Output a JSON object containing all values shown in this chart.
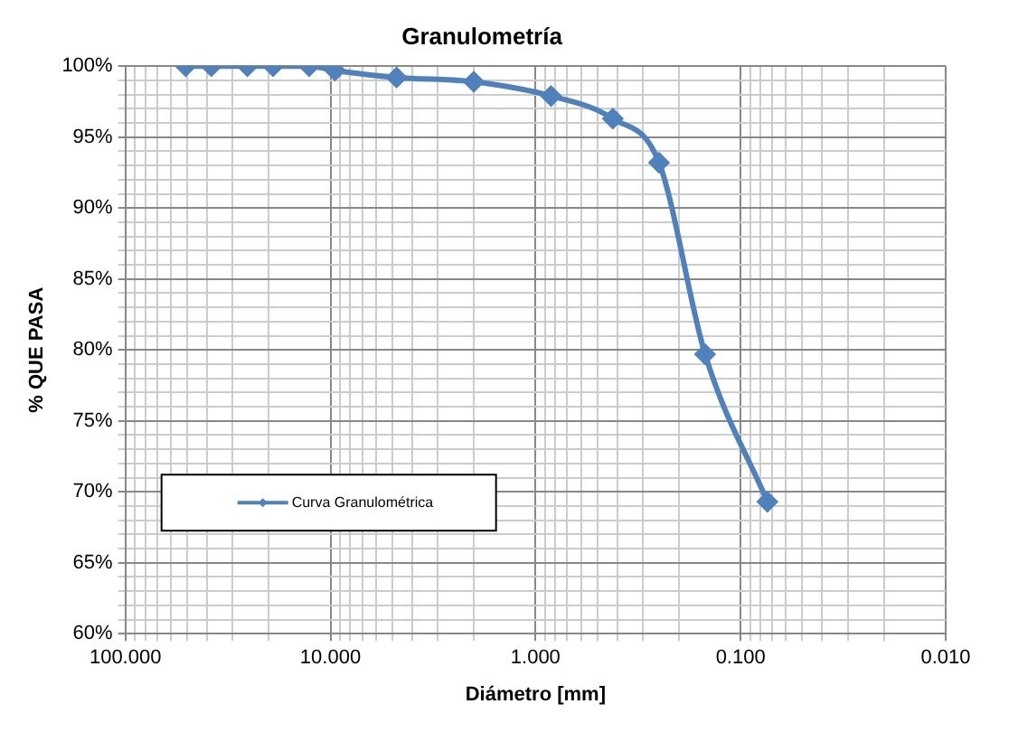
{
  "chart_data": {
    "type": "line",
    "title": "Granulometría",
    "xlabel": "Diámetro [mm]",
    "ylabel": "% QUE PASA",
    "log": "x",
    "xlim": [
      100,
      0.01
    ],
    "xticks": [
      {
        "value": 100,
        "label": "100.000"
      },
      {
        "value": 90,
        "label": null
      },
      {
        "value": 80,
        "label": null
      },
      {
        "value": 70,
        "label": null
      },
      {
        "value": 60,
        "label": null
      },
      {
        "value": 50,
        "label": null
      },
      {
        "value": 40,
        "label": null
      },
      {
        "value": 30,
        "label": null
      },
      {
        "value": 20,
        "label": null
      },
      {
        "value": 10,
        "label": "10.000"
      },
      {
        "value": 9,
        "label": null
      },
      {
        "value": 8,
        "label": null
      },
      {
        "value": 7,
        "label": null
      },
      {
        "value": 6,
        "label": null
      },
      {
        "value": 5,
        "label": null
      },
      {
        "value": 4,
        "label": null
      },
      {
        "value": 3,
        "label": null
      },
      {
        "value": 2,
        "label": null
      },
      {
        "value": 1,
        "label": "1.000"
      },
      {
        "value": 0.9,
        "label": null
      },
      {
        "value": 0.8,
        "label": null
      },
      {
        "value": 0.7,
        "label": null
      },
      {
        "value": 0.6,
        "label": null
      },
      {
        "value": 0.5,
        "label": null
      },
      {
        "value": 0.4,
        "label": null
      },
      {
        "value": 0.3,
        "label": null
      },
      {
        "value": 0.2,
        "label": null
      },
      {
        "value": 0.1,
        "label": "0.100"
      },
      {
        "value": 0.09,
        "label": null
      },
      {
        "value": 0.08,
        "label": null
      },
      {
        "value": 0.07,
        "label": null
      },
      {
        "value": 0.06,
        "label": null
      },
      {
        "value": 0.05,
        "label": null
      },
      {
        "value": 0.04,
        "label": null
      },
      {
        "value": 0.03,
        "label": null
      },
      {
        "value": 0.02,
        "label": null
      },
      {
        "value": 0.01,
        "label": "0.010"
      }
    ],
    "ylim": [
      60,
      100
    ],
    "yticks": [
      {
        "value": 60,
        "label": "60%"
      },
      {
        "value": 61,
        "label": null
      },
      {
        "value": 62,
        "label": null
      },
      {
        "value": 63,
        "label": null
      },
      {
        "value": 64,
        "label": null
      },
      {
        "value": 65,
        "label": "65%"
      },
      {
        "value": 66,
        "label": null
      },
      {
        "value": 67,
        "label": null
      },
      {
        "value": 68,
        "label": null
      },
      {
        "value": 69,
        "label": null
      },
      {
        "value": 70,
        "label": "70%"
      },
      {
        "value": 71,
        "label": null
      },
      {
        "value": 72,
        "label": null
      },
      {
        "value": 73,
        "label": null
      },
      {
        "value": 74,
        "label": null
      },
      {
        "value": 75,
        "label": "75%"
      },
      {
        "value": 76,
        "label": null
      },
      {
        "value": 77,
        "label": null
      },
      {
        "value": 78,
        "label": null
      },
      {
        "value": 79,
        "label": null
      },
      {
        "value": 80,
        "label": "80%"
      },
      {
        "value": 81,
        "label": null
      },
      {
        "value": 82,
        "label": null
      },
      {
        "value": 83,
        "label": null
      },
      {
        "value": 84,
        "label": null
      },
      {
        "value": 85,
        "label": "85%"
      },
      {
        "value": 86,
        "label": null
      },
      {
        "value": 87,
        "label": null
      },
      {
        "value": 88,
        "label": null
      },
      {
        "value": 89,
        "label": null
      },
      {
        "value": 90,
        "label": "90%"
      },
      {
        "value": 91,
        "label": null
      },
      {
        "value": 92,
        "label": null
      },
      {
        "value": 93,
        "label": null
      },
      {
        "value": 94,
        "label": null
      },
      {
        "value": 95,
        "label": "95%"
      },
      {
        "value": 96,
        "label": null
      },
      {
        "value": 97,
        "label": null
      },
      {
        "value": 98,
        "label": null
      },
      {
        "value": 99,
        "label": null
      },
      {
        "value": 100,
        "label": "100%"
      }
    ],
    "grid": true,
    "legend": "bottom left",
    "marker": "diamond",
    "line_style": "solid",
    "series": [
      {
        "name": "Curva Granulométrica",
        "color": "#4f81bd",
        "x": [
          50.8,
          38.1,
          25.4,
          19.05,
          12.7,
          9.5,
          4.76,
          2.0,
          0.84,
          0.42,
          0.25,
          0.149,
          0.074
        ],
        "values": [
          100,
          100,
          100,
          100,
          100,
          99.7,
          99.2,
          98.9,
          97.9,
          96.3,
          93.2,
          79.7,
          69.3
        ]
      }
    ]
  }
}
